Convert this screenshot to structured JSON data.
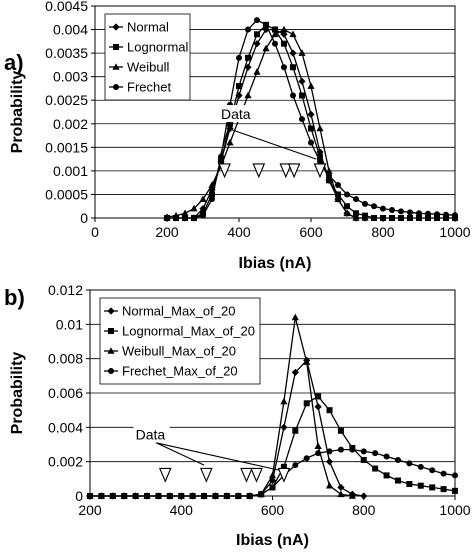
{
  "chart_data": [
    {
      "panel_label": "a)",
      "type": "line",
      "xlabel": "Ibias (nA)",
      "ylabel": "Probability",
      "xlim": [
        0,
        1000
      ],
      "ylim": [
        0,
        0.0045
      ],
      "xticks": [
        "0",
        "200",
        "400",
        "600",
        "800",
        "1000"
      ],
      "yticks": [
        "0",
        "0.0005",
        "0.001",
        "0.0015",
        "0.002",
        "0.0025",
        "0.003",
        "0.0035",
        "0.004",
        "0.0045"
      ],
      "grid": "horizontal",
      "legend_position": "top-left",
      "series": [
        {
          "name": "Normal",
          "marker": "diamond",
          "x": [
            200,
            225,
            250,
            275,
            300,
            325,
            350,
            375,
            400,
            425,
            450,
            475,
            500,
            525,
            550,
            575,
            600,
            625,
            650,
            675,
            700,
            725,
            750
          ],
          "y": [
            0.0,
            0.0,
            0.0,
            0.0,
            0.0002,
            0.0006,
            0.0012,
            0.0019,
            0.0026,
            0.0032,
            0.0037,
            0.004,
            0.004,
            0.0039,
            0.0035,
            0.0029,
            0.0022,
            0.0014,
            0.0008,
            0.0004,
            0.0001,
            0.0,
            0.0
          ]
        },
        {
          "name": "Lognormal",
          "marker": "square",
          "x": [
            200,
            225,
            250,
            275,
            300,
            325,
            350,
            375,
            400,
            425,
            450,
            475,
            500,
            525,
            550,
            575,
            600,
            625,
            650,
            675,
            700,
            725,
            750,
            775,
            800,
            825,
            850,
            875,
            900,
            925,
            950,
            975,
            1000
          ],
          "y": [
            0.0,
            0.0,
            0.0,
            0.0,
            0.0001,
            0.0005,
            0.0012,
            0.002,
            0.0028,
            0.0034,
            0.0039,
            0.0041,
            0.004,
            0.0037,
            0.0032,
            0.0026,
            0.0019,
            0.0013,
            0.0008,
            0.0005,
            0.00025,
            0.0001,
            5e-05,
            0.0,
            0.0,
            0.0,
            0.0,
            0.0,
            0.0,
            0.0,
            0.0,
            0.0,
            0.0
          ]
        },
        {
          "name": "Weibull",
          "marker": "triangle",
          "x": [
            200,
            225,
            250,
            275,
            300,
            325,
            350,
            375,
            400,
            425,
            450,
            475,
            500,
            525,
            550,
            575,
            600,
            625,
            650,
            675,
            700,
            725,
            750
          ],
          "y": [
            2e-05,
            5e-05,
            0.0001,
            0.0002,
            0.0004,
            0.0007,
            0.0011,
            0.0016,
            0.0021,
            0.0026,
            0.0031,
            0.0036,
            0.0039,
            0.004,
            0.0039,
            0.0035,
            0.0028,
            0.0019,
            0.001,
            0.0004,
            0.0001,
            0.0,
            0.0
          ]
        },
        {
          "name": "Frechet",
          "marker": "circle",
          "x": [
            200,
            225,
            250,
            275,
            300,
            325,
            350,
            375,
            400,
            425,
            450,
            475,
            500,
            525,
            550,
            575,
            600,
            625,
            650,
            675,
            700,
            725,
            750,
            775,
            800,
            825,
            850,
            875,
            900,
            925,
            950,
            975,
            1000
          ],
          "y": [
            0.0,
            0.0,
            0.0,
            0.0,
            5e-05,
            0.0004,
            0.0013,
            0.0024,
            0.0034,
            0.004,
            0.0042,
            0.0041,
            0.0037,
            0.0032,
            0.0026,
            0.0021,
            0.0016,
            0.0012,
            0.0009,
            0.0007,
            0.0005,
            0.0004,
            0.0003,
            0.00025,
            0.0002,
            0.00017,
            0.00014,
            0.00012,
            0.0001,
            9e-05,
            8e-05,
            7e-05,
            6e-05
          ]
        }
      ],
      "data_points": {
        "marker": "open-triangle-down",
        "y": 0.001,
        "x": [
          360,
          455,
          530,
          553,
          625
        ]
      },
      "annotation": {
        "text": "Data",
        "text_at": [
          350,
          0.0021
        ],
        "arrow_from": [
          370,
          0.0019
        ],
        "arrows_to": [
          [
            345,
            0.00125
          ],
          [
            615,
            0.00125
          ]
        ]
      }
    },
    {
      "panel_label": "b)",
      "type": "line",
      "xlabel": "Ibias (nA)",
      "ylabel": "Probability",
      "xlim": [
        200,
        1000
      ],
      "ylim": [
        0,
        0.012
      ],
      "xticks": [
        "200",
        "400",
        "600",
        "800",
        "1000"
      ],
      "yticks": [
        "0",
        "0.002",
        "0.004",
        "0.006",
        "0.008",
        "0.01",
        "0.012"
      ],
      "grid": "horizontal",
      "legend_position": "top-left",
      "series": [
        {
          "name": "Normal_Max_of_20",
          "marker": "diamond",
          "x": [
            200,
            225,
            250,
            275,
            300,
            325,
            350,
            375,
            400,
            425,
            450,
            475,
            500,
            525,
            550,
            575,
            600,
            625,
            650,
            675,
            700,
            725,
            750,
            775,
            800
          ],
          "y": [
            0,
            0,
            0,
            0,
            0,
            0,
            0,
            0,
            0,
            0,
            0,
            0,
            0,
            0,
            0,
            0.0001,
            0.0009,
            0.004,
            0.0072,
            0.0079,
            0.0052,
            0.002,
            0.0005,
            0.0001,
            0.0
          ]
        },
        {
          "name": "Lognormal_Max_of_20",
          "marker": "square",
          "x": [
            200,
            225,
            250,
            275,
            300,
            325,
            350,
            375,
            400,
            425,
            450,
            475,
            500,
            525,
            550,
            575,
            600,
            625,
            650,
            675,
            700,
            725,
            750,
            775,
            800,
            825,
            850,
            875,
            900,
            925,
            950,
            975,
            1000
          ],
          "y": [
            0,
            0,
            0,
            0,
            0,
            0,
            0,
            0,
            0,
            0,
            0,
            0,
            0,
            0,
            0,
            0.0001,
            0.0005,
            0.0017,
            0.0038,
            0.0054,
            0.0058,
            0.005,
            0.0038,
            0.0028,
            0.0021,
            0.0016,
            0.0012,
            0.0009,
            0.0007,
            0.0006,
            0.0005,
            0.0004,
            0.0003
          ]
        },
        {
          "name": "Weibull_Max_of_20",
          "marker": "triangle",
          "x": [
            200,
            225,
            250,
            275,
            300,
            325,
            350,
            375,
            400,
            425,
            450,
            475,
            500,
            525,
            550,
            575,
            600,
            625,
            650,
            675,
            700,
            725,
            750,
            775
          ],
          "y": [
            0,
            0,
            0,
            0,
            0,
            0,
            0,
            0,
            0,
            0,
            0,
            0,
            0,
            0,
            0,
            0.0001,
            0.0012,
            0.0055,
            0.0104,
            0.0078,
            0.0029,
            0.0006,
            0.0001,
            0.0
          ]
        },
        {
          "name": "Frechet_Max_of_20",
          "marker": "circle",
          "x": [
            200,
            225,
            250,
            275,
            300,
            325,
            350,
            375,
            400,
            425,
            450,
            475,
            500,
            525,
            550,
            575,
            600,
            625,
            650,
            675,
            700,
            725,
            750,
            775,
            800,
            825,
            850,
            875,
            900,
            925,
            950,
            975,
            1000
          ],
          "y": [
            0,
            0,
            0,
            0,
            0,
            0,
            0,
            0,
            0,
            0,
            0,
            0,
            0,
            0,
            0,
            0.0001,
            0.0005,
            0.0012,
            0.0018,
            0.0022,
            0.0025,
            0.0026,
            0.0027,
            0.0027,
            0.0026,
            0.0025,
            0.0023,
            0.0021,
            0.0019,
            0.0017,
            0.0015,
            0.0013,
            0.0012
          ]
        }
      ],
      "data_points": {
        "marker": "open-triangle-down",
        "y": 0.0012,
        "x": [
          365,
          455,
          543,
          565,
          625
        ]
      },
      "annotation": {
        "text": "Data",
        "text_at": [
          300,
          0.0033
        ],
        "arrow_from": [
          345,
          0.0031
        ],
        "arrows_to": [
          [
            450,
            0.0018
          ],
          [
            615,
            0.0015
          ]
        ]
      }
    }
  ]
}
